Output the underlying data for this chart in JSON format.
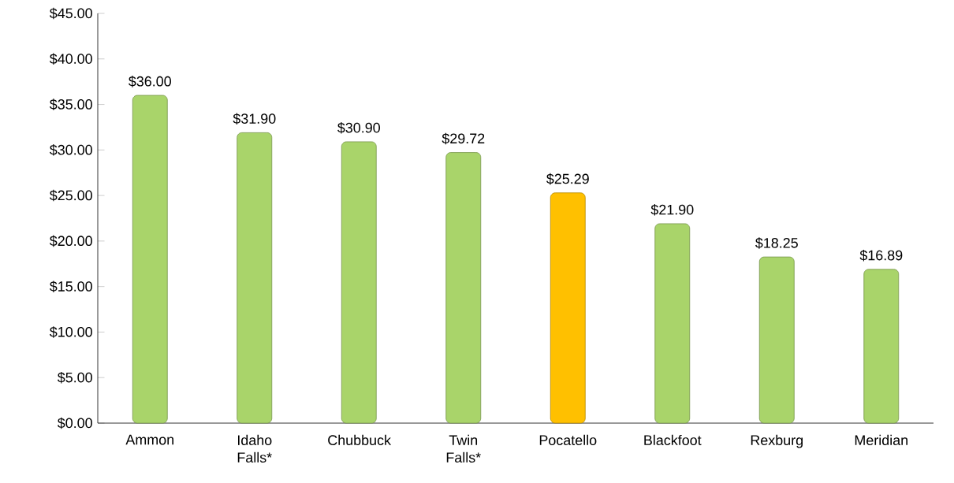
{
  "chart_data": {
    "type": "bar",
    "categories": [
      "Ammon",
      "Idaho Falls*",
      "Chubbuck",
      "Twin Falls*",
      "Pocatello",
      "Blackfoot",
      "Rexburg",
      "Meridian"
    ],
    "values": [
      36.0,
      31.9,
      30.9,
      29.72,
      25.29,
      21.9,
      18.25,
      16.89
    ],
    "value_labels": [
      "$36.00",
      "$31.90",
      "$30.90",
      "$29.72",
      "$25.29",
      "$21.90",
      "$18.25",
      "$16.89"
    ],
    "colors": [
      "#a9d46a",
      "#a9d46a",
      "#a9d46a",
      "#a9d46a",
      "#ffc000",
      "#a9d46a",
      "#a9d46a",
      "#a9d46a"
    ],
    "ylim": [
      0,
      45
    ],
    "yticks": [
      {
        "value": 0,
        "label": "$0.00"
      },
      {
        "value": 5,
        "label": "$5.00"
      },
      {
        "value": 10,
        "label": "$10.00"
      },
      {
        "value": 15,
        "label": "$15.00"
      },
      {
        "value": 20,
        "label": "$20.00"
      },
      {
        "value": 25,
        "label": "$25.00"
      },
      {
        "value": 30,
        "label": "$30.00"
      },
      {
        "value": 35,
        "label": "$35.00"
      },
      {
        "value": 40,
        "label": "$40.00"
      },
      {
        "value": 45,
        "label": "$45.00"
      }
    ],
    "grid": false
  }
}
